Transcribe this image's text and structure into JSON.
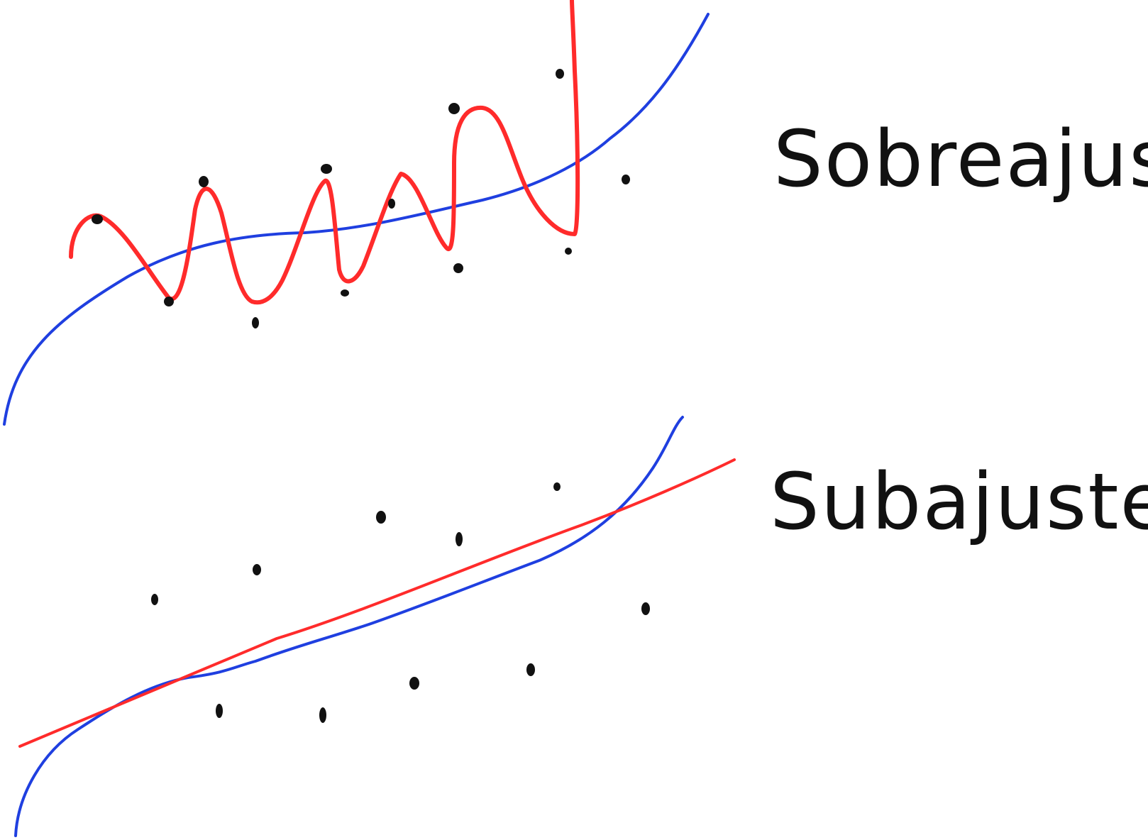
{
  "colors": {
    "background": "#ffffff",
    "ink": "#111111",
    "model_curve": "#ff2b2b",
    "true_curve": "#1f3fe0"
  },
  "panels": {
    "overfitting": {
      "label": "Sobreajuste"
    },
    "underfitting": {
      "label": "Subajuste"
    }
  }
}
